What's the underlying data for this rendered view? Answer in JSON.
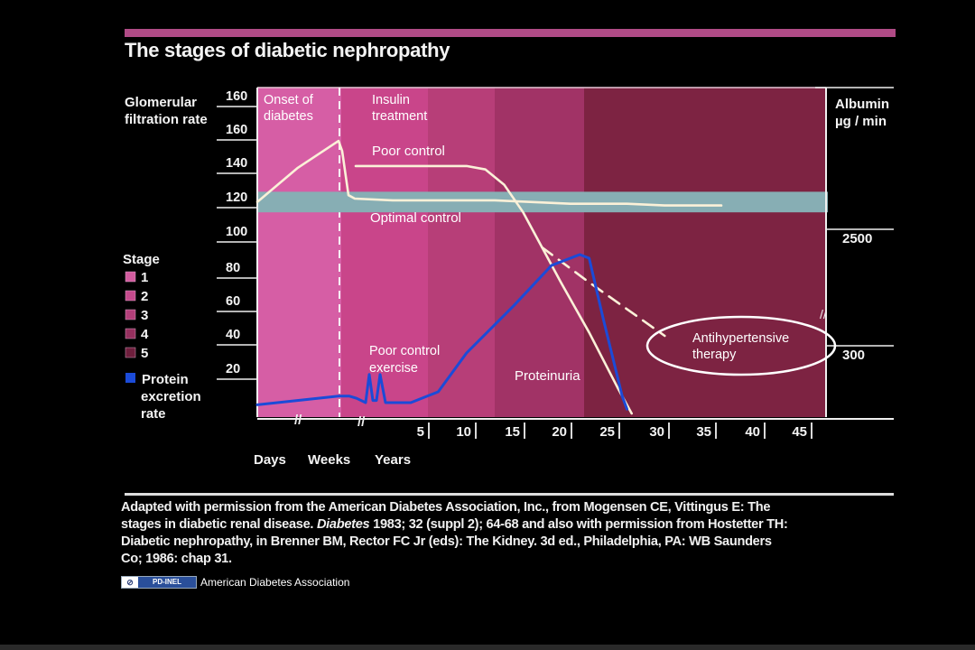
{
  "title": "The stages of diabetic nephropathy",
  "chart_data": {
    "type": "line",
    "title": "The stages of diabetic nephropathy",
    "left_axis": {
      "label_lines": [
        "Glomerular",
        "filtration rate"
      ],
      "ticks": [
        "160",
        "160",
        "140",
        "120",
        "100",
        "80",
        "60",
        "40",
        "20"
      ],
      "range": [
        0,
        180
      ]
    },
    "right_axis": {
      "label_lines": [
        "Albumin",
        "µg / min"
      ],
      "ticks": [
        "2500",
        "300"
      ]
    },
    "x_axis": {
      "segment_labels": [
        "Days",
        "Weeks",
        "Years"
      ],
      "ticks": [
        "5",
        "10",
        "15",
        "20",
        "25",
        "30",
        "35",
        "40",
        "45"
      ]
    },
    "period_labels": [
      {
        "lines": [
          "Onset of",
          "diabetes"
        ]
      },
      {
        "lines": [
          "Insulin",
          "treatment"
        ]
      }
    ],
    "stages_legend": {
      "title": "Stage",
      "items": [
        {
          "label": "1",
          "color": "#d25c9f"
        },
        {
          "label": "2",
          "color": "#c44a8c"
        },
        {
          "label": "3",
          "color": "#b33f7a"
        },
        {
          "label": "4",
          "color": "#95305e"
        },
        {
          "label": "5",
          "color": "#6e1f3d"
        }
      ],
      "protein": {
        "lines": [
          "Protein",
          "excretion",
          "rate"
        ],
        "color": "#1b4bd8"
      }
    },
    "stage_band_colors": [
      "#d65ea5",
      "#c9458a",
      "#b73e78",
      "#a13366",
      "#7d2342"
    ],
    "series": [
      {
        "name": "Poor control",
        "color": "#fbf1d8",
        "points": [
          [
            -0.6,
            118
          ],
          [
            -0.3,
            138
          ],
          [
            0,
            154
          ],
          [
            0.2,
            148
          ],
          [
            0.55,
            122
          ],
          [
            0.9,
            120
          ],
          [
            3,
            119
          ],
          [
            12,
            119
          ],
          [
            16,
            118
          ],
          [
            20,
            117
          ],
          [
            26,
            117
          ],
          [
            30,
            116
          ],
          [
            36,
            116
          ]
        ]
      },
      {
        "name": "Poor control",
        "color": "#fbf1d8",
        "points": [
          [
            0.95,
            139
          ],
          [
            3,
            139
          ],
          [
            9,
            139
          ],
          [
            11,
            137
          ],
          [
            13,
            128
          ],
          [
            15,
            112
          ],
          [
            17,
            92
          ],
          [
            19,
            72
          ],
          [
            22,
            42
          ],
          [
            25,
            12
          ],
          [
            26.5,
            0
          ]
        ]
      },
      {
        "name": "Antihypertensive therapy",
        "color": "#fbf1d8",
        "dashed": true,
        "points": [
          [
            17,
            92
          ],
          [
            22,
            72
          ],
          [
            27,
            52
          ],
          [
            30,
            40
          ]
        ]
      },
      {
        "name": "Protein excretion rate",
        "color": "#1b4bd8",
        "points": [
          [
            -0.6,
            4
          ],
          [
            0,
            8
          ],
          [
            0.6,
            8
          ],
          [
            1,
            7
          ],
          [
            1.5,
            5
          ],
          [
            1.7,
            18
          ],
          [
            1.9,
            6
          ],
          [
            2.1,
            6
          ],
          [
            2.3,
            18
          ],
          [
            2.6,
            5
          ],
          [
            4,
            5
          ],
          [
            6,
            10
          ],
          [
            9,
            30
          ],
          [
            14,
            58
          ],
          [
            18,
            82
          ],
          [
            21,
            88
          ],
          [
            22,
            86
          ],
          [
            23.5,
            50
          ],
          [
            25.5,
            8
          ],
          [
            26,
            2
          ]
        ]
      }
    ],
    "optimal_control_band": {
      "label": "Optimal control",
      "range": [
        112,
        124
      ],
      "color": "#87aeb4"
    },
    "annotations": [
      "Poor control",
      "Optimal control",
      "Poor control",
      "exercise",
      "Proteinuria",
      "Antihypertensive",
      "therapy"
    ],
    "break_marks": [
      "//",
      "//"
    ]
  },
  "citation": {
    "line1": "Adapted with permission from the American Diabetes Association, Inc., from Mogensen CE, Vittingus E: The",
    "line2a": "stages in diabetic renal disease.",
    "line2_italic": "Diabetes",
    "line2b": "1983; 32 (suppl 2); 64-68 and also with permission from Hostetter TH:",
    "line3": "Diabetic nephropathy, in Brenner BM, Rector FC Jr (eds): The Kidney. 3d ed., Philadelphia, PA: WB Saunders",
    "line4": "Co; 1986: chap 31."
  },
  "license": {
    "cc_glyph": "⊘",
    "badge": "PD-INEL",
    "holder": "American Diabetes Association"
  }
}
